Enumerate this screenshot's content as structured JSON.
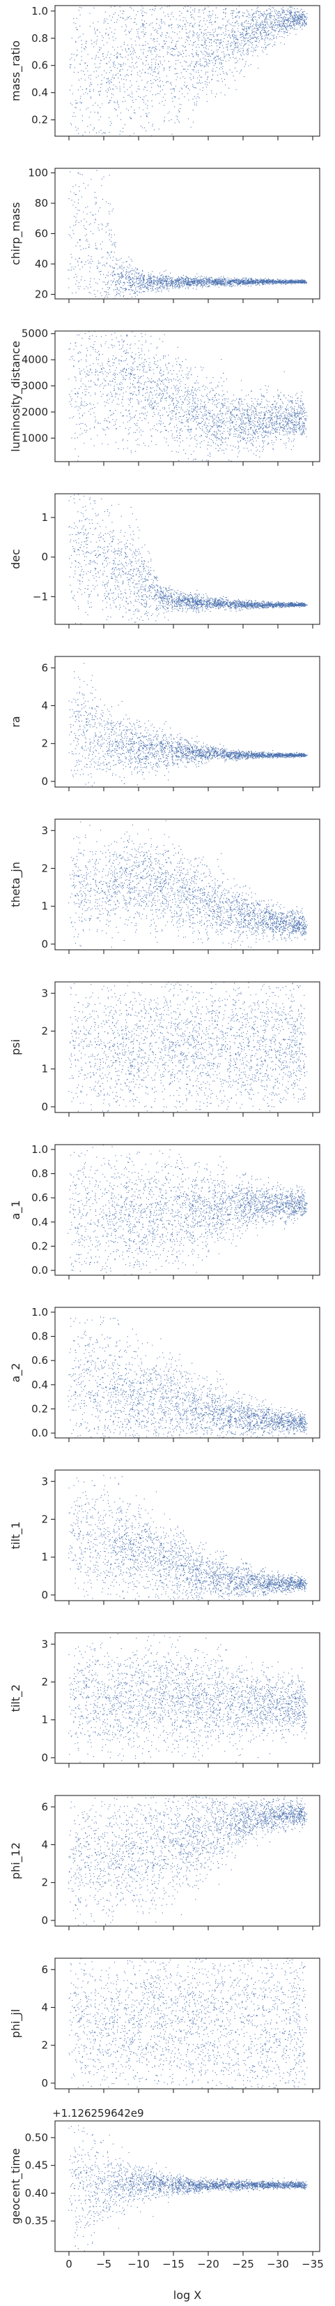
{
  "chart_data": {
    "type": "scatter",
    "marker_color": "#4c72b0",
    "x_axis": {
      "label": "log X",
      "lim": [
        2,
        -36
      ],
      "ticks": [
        0,
        -5,
        -10,
        -15,
        -20,
        -25,
        -30,
        -35
      ],
      "tick_labels": [
        "0",
        "−5",
        "−10",
        "−15",
        "−20",
        "−25",
        "−30",
        "−35"
      ]
    },
    "panels": [
      {
        "ylabel": "mass_ratio",
        "ylim": [
          0.08,
          1.04
        ],
        "yticks": [
          0.2,
          0.4,
          0.6,
          0.8,
          1.0
        ],
        "ytick_labels": [
          "0.2",
          "0.4",
          "0.6",
          "0.8",
          "1.0"
        ],
        "trend": [
          [
            0,
            0.55,
            0.42
          ],
          [
            -5,
            0.6,
            0.38
          ],
          [
            -10,
            0.64,
            0.34
          ],
          [
            -15,
            0.7,
            0.28
          ],
          [
            -20,
            0.77,
            0.2
          ],
          [
            -25,
            0.85,
            0.12
          ],
          [
            -30,
            0.92,
            0.06
          ],
          [
            -34,
            0.95,
            0.03
          ]
        ]
      },
      {
        "ylabel": "chirp_mass",
        "ylim": [
          17,
          103
        ],
        "yticks": [
          20,
          40,
          60,
          80,
          100
        ],
        "ytick_labels": [
          "20",
          "40",
          "60",
          "80",
          "100"
        ],
        "trend": [
          [
            0,
            55,
            40
          ],
          [
            -5,
            45,
            30
          ],
          [
            -7,
            30,
            8
          ],
          [
            -10,
            28,
            4
          ],
          [
            -15,
            28,
            2
          ],
          [
            -20,
            28.5,
            1.5
          ],
          [
            -25,
            28.5,
            1
          ],
          [
            -30,
            28.5,
            0.7
          ],
          [
            -34,
            28.5,
            0.5
          ]
        ]
      },
      {
        "ylabel": "luminosity_distance",
        "ylim": [
          100,
          5100
        ],
        "yticks": [
          1000,
          2000,
          3000,
          4000,
          5000
        ],
        "ytick_labels": [
          "1000",
          "2000",
          "3000",
          "4000",
          "5000"
        ],
        "trend": [
          [
            0,
            3200,
            1700
          ],
          [
            -5,
            3500,
            1400
          ],
          [
            -10,
            3000,
            1100
          ],
          [
            -15,
            2400,
            900
          ],
          [
            -20,
            1800,
            700
          ],
          [
            -25,
            1600,
            550
          ],
          [
            -30,
            1700,
            450
          ],
          [
            -34,
            1800,
            350
          ]
        ]
      },
      {
        "ylabel": "dec",
        "ylim": [
          -1.7,
          1.6
        ],
        "yticks": [
          -1,
          0,
          1
        ],
        "ytick_labels": [
          "−1",
          "0",
          "1"
        ],
        "trend": [
          [
            0,
            0.2,
            0.8
          ],
          [
            -5,
            0.0,
            0.75
          ],
          [
            -10,
            -0.5,
            0.6
          ],
          [
            -13,
            -1.0,
            0.2
          ],
          [
            -15,
            -1.1,
            0.12
          ],
          [
            -20,
            -1.15,
            0.08
          ],
          [
            -25,
            -1.2,
            0.05
          ],
          [
            -30,
            -1.2,
            0.03
          ],
          [
            -34,
            -1.2,
            0.02
          ]
        ]
      },
      {
        "ylabel": "ra",
        "ylim": [
          -0.3,
          6.6
        ],
        "yticks": [
          0,
          2,
          4,
          6
        ],
        "ytick_labels": [
          "0",
          "2",
          "4",
          "6"
        ],
        "trend": [
          [
            0,
            3.0,
            1.8
          ],
          [
            -5,
            2.2,
            1.0
          ],
          [
            -10,
            1.8,
            0.7
          ],
          [
            -15,
            1.6,
            0.4
          ],
          [
            -20,
            1.5,
            0.2
          ],
          [
            -25,
            1.4,
            0.1
          ],
          [
            -30,
            1.4,
            0.06
          ],
          [
            -34,
            1.4,
            0.04
          ]
        ]
      },
      {
        "ylabel": "theta_jn",
        "ylim": [
          -0.15,
          3.3
        ],
        "yticks": [
          0,
          1,
          2,
          3
        ],
        "ytick_labels": [
          "0",
          "1",
          "2",
          "3"
        ],
        "trend": [
          [
            0,
            1.5,
            0.7
          ],
          [
            -5,
            1.6,
            0.65
          ],
          [
            -10,
            1.7,
            0.6
          ],
          [
            -15,
            1.4,
            0.55
          ],
          [
            -20,
            1.1,
            0.45
          ],
          [
            -25,
            0.8,
            0.3
          ],
          [
            -30,
            0.6,
            0.2
          ],
          [
            -34,
            0.5,
            0.15
          ]
        ]
      },
      {
        "ylabel": "psi",
        "ylim": [
          -0.15,
          3.3
        ],
        "yticks": [
          0,
          1,
          2,
          3
        ],
        "ytick_labels": [
          "0",
          "1",
          "2",
          "3"
        ],
        "trend": [
          [
            0,
            1.57,
            0.95
          ],
          [
            -10,
            1.57,
            0.95
          ],
          [
            -20,
            1.57,
            0.95
          ],
          [
            -25,
            1.57,
            0.9
          ],
          [
            -30,
            1.57,
            0.85
          ],
          [
            -34,
            1.57,
            0.8
          ]
        ]
      },
      {
        "ylabel": "a_1",
        "ylim": [
          -0.04,
          1.04
        ],
        "yticks": [
          0.0,
          0.2,
          0.4,
          0.6,
          0.8,
          1.0
        ],
        "ytick_labels": [
          "0.0",
          "0.2",
          "0.4",
          "0.6",
          "0.8",
          "1.0"
        ],
        "trend": [
          [
            0,
            0.45,
            0.3
          ],
          [
            -5,
            0.45,
            0.28
          ],
          [
            -10,
            0.45,
            0.26
          ],
          [
            -15,
            0.47,
            0.22
          ],
          [
            -20,
            0.5,
            0.16
          ],
          [
            -25,
            0.55,
            0.1
          ],
          [
            -30,
            0.55,
            0.07
          ],
          [
            -34,
            0.55,
            0.05
          ]
        ]
      },
      {
        "ylabel": "a_2",
        "ylim": [
          -0.04,
          1.04
        ],
        "yticks": [
          0.0,
          0.2,
          0.4,
          0.6,
          0.8,
          1.0
        ],
        "ytick_labels": [
          "0.0",
          "0.2",
          "0.4",
          "0.6",
          "0.8",
          "1.0"
        ],
        "trend": [
          [
            0,
            0.45,
            0.3
          ],
          [
            -5,
            0.38,
            0.26
          ],
          [
            -10,
            0.3,
            0.22
          ],
          [
            -15,
            0.24,
            0.17
          ],
          [
            -20,
            0.18,
            0.12
          ],
          [
            -25,
            0.13,
            0.08
          ],
          [
            -30,
            0.1,
            0.05
          ],
          [
            -34,
            0.08,
            0.04
          ]
        ]
      },
      {
        "ylabel": "tilt_1",
        "ylim": [
          -0.15,
          3.3
        ],
        "yticks": [
          0,
          1,
          2,
          3
        ],
        "ytick_labels": [
          "0",
          "1",
          "2",
          "3"
        ],
        "trend": [
          [
            0,
            1.6,
            0.8
          ],
          [
            -5,
            1.5,
            0.75
          ],
          [
            -10,
            1.2,
            0.6
          ],
          [
            -15,
            0.8,
            0.45
          ],
          [
            -20,
            0.5,
            0.3
          ],
          [
            -25,
            0.35,
            0.2
          ],
          [
            -30,
            0.3,
            0.12
          ],
          [
            -34,
            0.3,
            0.08
          ]
        ]
      },
      {
        "ylabel": "tilt_2",
        "ylim": [
          -0.15,
          3.3
        ],
        "yticks": [
          0,
          1,
          2,
          3
        ],
        "ytick_labels": [
          "0",
          "1",
          "2",
          "3"
        ],
        "trend": [
          [
            0,
            1.57,
            0.75
          ],
          [
            -10,
            1.57,
            0.7
          ],
          [
            -20,
            1.5,
            0.6
          ],
          [
            -25,
            1.45,
            0.5
          ],
          [
            -30,
            1.4,
            0.4
          ],
          [
            -34,
            1.4,
            0.35
          ]
        ]
      },
      {
        "ylabel": "phi_12",
        "ylim": [
          -0.3,
          6.6
        ],
        "yticks": [
          0,
          2,
          4,
          6
        ],
        "ytick_labels": [
          "0",
          "2",
          "4",
          "6"
        ],
        "trend": [
          [
            0,
            3.14,
            1.9
          ],
          [
            -10,
            3.6,
            1.7
          ],
          [
            -20,
            4.6,
            1.3
          ],
          [
            -25,
            5.4,
            0.6
          ],
          [
            -30,
            5.6,
            0.4
          ],
          [
            -34,
            5.6,
            0.3
          ]
        ]
      },
      {
        "ylabel": "phi_jl",
        "ylim": [
          -0.3,
          6.6
        ],
        "yticks": [
          0,
          2,
          4,
          6
        ],
        "ytick_labels": [
          "0",
          "2",
          "4",
          "6"
        ],
        "trend": [
          [
            0,
            3.14,
            1.9
          ],
          [
            -10,
            3.14,
            1.9
          ],
          [
            -20,
            3.14,
            2.3
          ],
          [
            -25,
            3.14,
            2.7
          ],
          [
            -30,
            3.14,
            2.9
          ],
          [
            -34,
            3.14,
            2.9
          ]
        ]
      },
      {
        "ylabel": "geocent_time",
        "offset_text": "+1.126259642e9",
        "ylim": [
          0.295,
          0.53
        ],
        "yticks": [
          0.35,
          0.4,
          0.45,
          0.5
        ],
        "ytick_labels": [
          "0.35",
          "0.40",
          "0.45",
          "0.50"
        ],
        "trend": [
          [
            0,
            0.41,
            0.07
          ],
          [
            -3,
            0.41,
            0.05
          ],
          [
            -6,
            0.42,
            0.03
          ],
          [
            -10,
            0.418,
            0.015
          ],
          [
            -15,
            0.415,
            0.008
          ],
          [
            -20,
            0.415,
            0.005
          ],
          [
            -25,
            0.415,
            0.004
          ],
          [
            -30,
            0.415,
            0.003
          ],
          [
            -34,
            0.415,
            0.003
          ]
        ]
      }
    ]
  }
}
